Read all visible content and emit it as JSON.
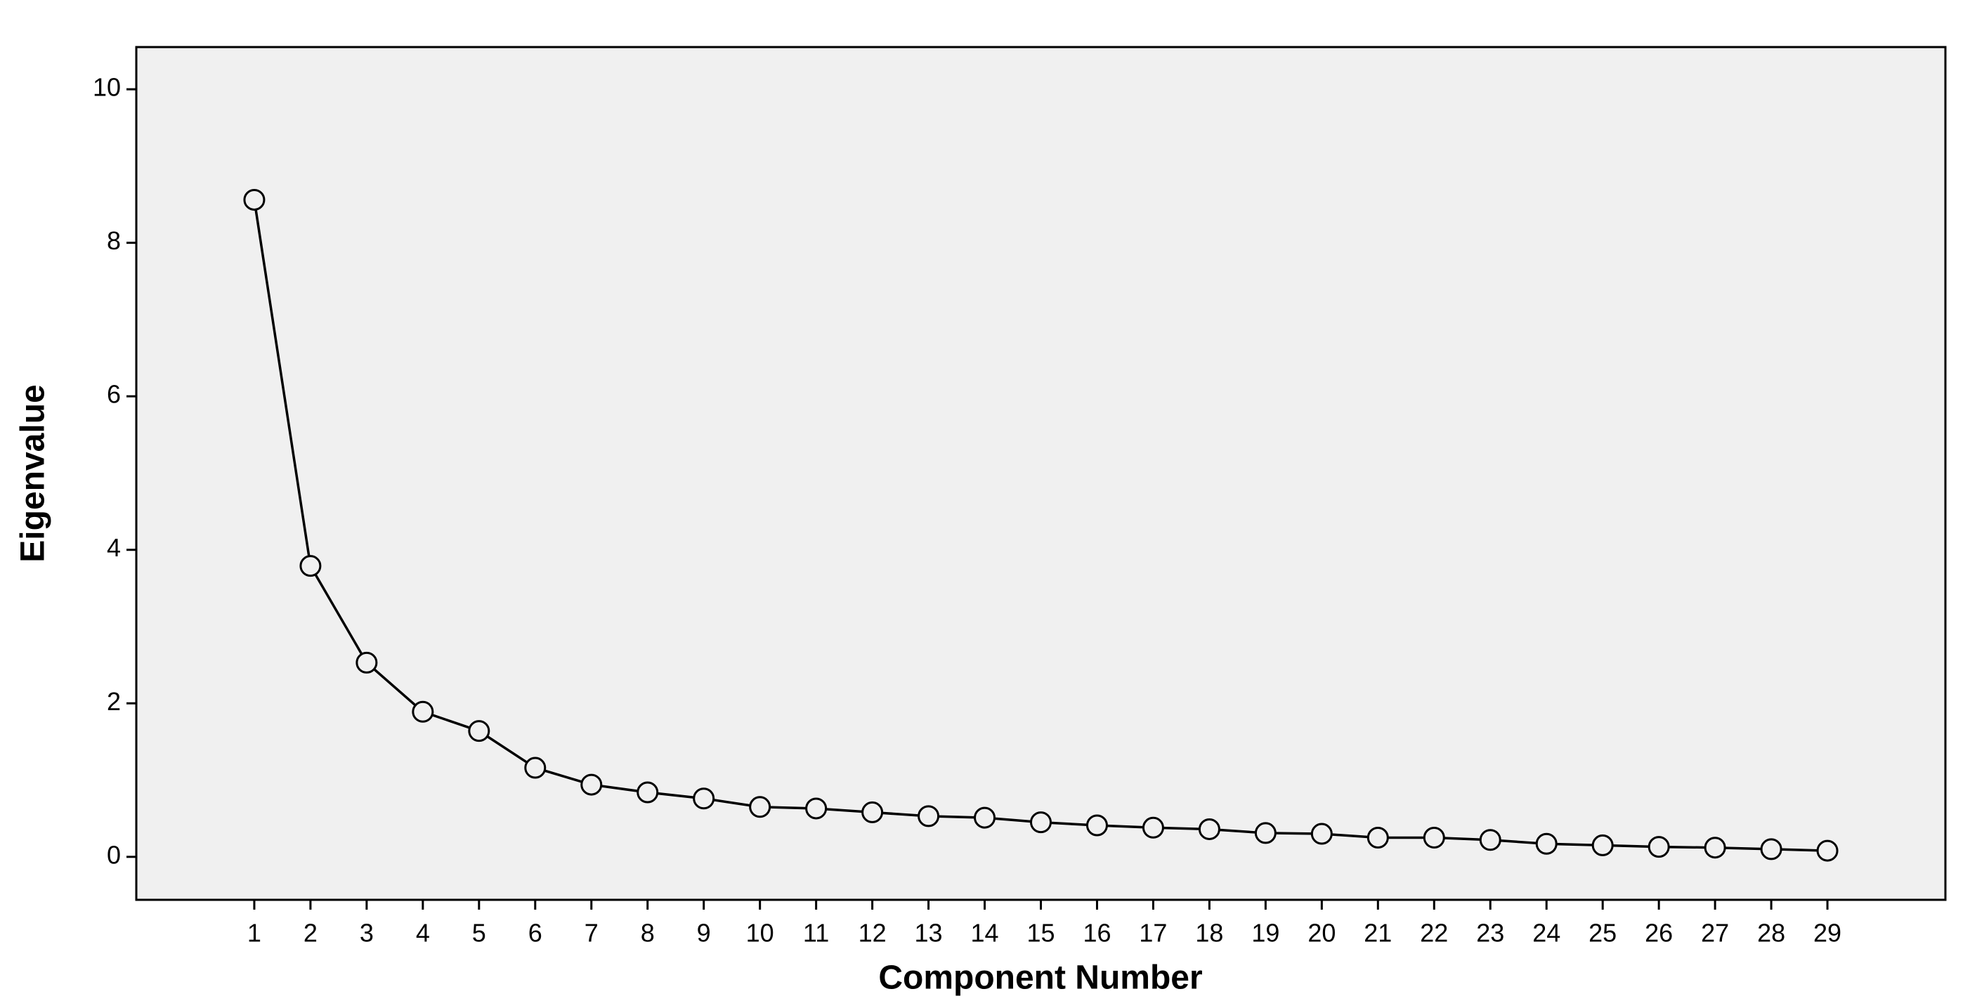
{
  "chart_data": {
    "type": "line",
    "x_label": "Component Number",
    "y_label": "Eigenvalue",
    "x": [
      1,
      2,
      3,
      4,
      5,
      6,
      7,
      8,
      9,
      10,
      11,
      12,
      13,
      14,
      15,
      16,
      17,
      18,
      19,
      20,
      21,
      22,
      23,
      24,
      25,
      26,
      27,
      28,
      29
    ],
    "series": [
      {
        "color": "#000000",
        "values": [
          8.56,
          3.79,
          2.53,
          1.89,
          1.64,
          1.16,
          0.94,
          0.84,
          0.76,
          0.65,
          0.63,
          0.58,
          0.53,
          0.51,
          0.45,
          0.41,
          0.38,
          0.36,
          0.31,
          0.3,
          0.25,
          0.25,
          0.22,
          0.17,
          0.15,
          0.13,
          0.12,
          0.1,
          0.08
        ]
      }
    ],
    "xlim": [
      -1.1,
      31.1
    ],
    "xticks": [
      1,
      2,
      3,
      4,
      5,
      6,
      7,
      8,
      9,
      10,
      11,
      12,
      13,
      14,
      15,
      16,
      17,
      18,
      19,
      20,
      21,
      22,
      23,
      24,
      25,
      26,
      27,
      28,
      29
    ],
    "ylim": [
      -0.56,
      10.55
    ],
    "yticks": [
      0,
      2,
      4,
      6,
      8,
      10
    ],
    "background": "#f0f0f0"
  }
}
